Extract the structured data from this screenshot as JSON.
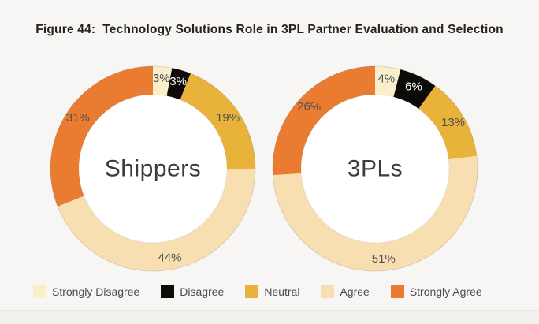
{
  "page": {
    "background": "#f7f6f4",
    "title": "Figure 44:  Technology Solutions Role in 3PL Partner Evaluation and Selection"
  },
  "legend": {
    "items": [
      {
        "label": "Strongly Disagree",
        "color": "#f9f0cb"
      },
      {
        "label": "Disagree",
        "color": "#0d0b08"
      },
      {
        "label": "Neutral",
        "color": "#e9b23b"
      },
      {
        "label": "Agree",
        "color": "#f8dfb1"
      },
      {
        "label": "Strongly Agree",
        "color": "#ea7c31"
      }
    ]
  },
  "chart_data": [
    {
      "type": "pie",
      "style": "donut",
      "title": "Shippers",
      "unit": "%",
      "direction": "clockwise",
      "start_angle_deg": 0,
      "categories": [
        "Strongly Disagree",
        "Disagree",
        "Neutral",
        "Agree",
        "Strongly Agree"
      ],
      "values": [
        3,
        3,
        19,
        44,
        31
      ],
      "colors": [
        "#f9f0cb",
        "#0d0b08",
        "#e9b23b",
        "#f8dfb1",
        "#ea7c31"
      ],
      "label_colors": [
        "#4f4f53",
        "#ffffff",
        "#4f4f53",
        "#4f4f53",
        "#4f4f53"
      ]
    },
    {
      "type": "pie",
      "style": "donut",
      "title": "3PLs",
      "unit": "%",
      "direction": "clockwise",
      "start_angle_deg": 0,
      "categories": [
        "Strongly Disagree",
        "Disagree",
        "Neutral",
        "Agree",
        "Strongly Agree"
      ],
      "values": [
        4,
        6,
        13,
        51,
        26
      ],
      "colors": [
        "#f9f0cb",
        "#0d0b08",
        "#e9b23b",
        "#f8dfb1",
        "#ea7c31"
      ],
      "label_colors": [
        "#4f4f53",
        "#ffffff",
        "#4f4f53",
        "#4f4f53",
        "#4f4f53"
      ]
    }
  ]
}
